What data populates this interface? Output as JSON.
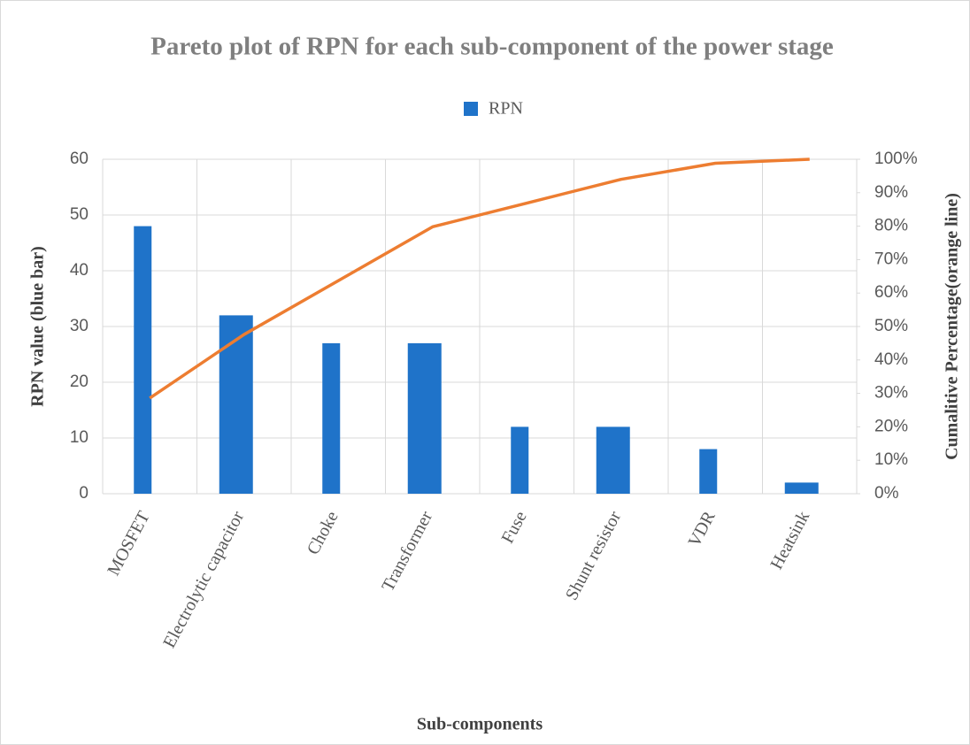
{
  "chart_data": {
    "type": "bar",
    "title": "Pareto plot of RPN for each sub-component of the power stage",
    "x_label": "Sub-components",
    "y_label": "RPN value (blue bar)",
    "y2_label": "Cumalitive Percentage(orange line)",
    "categories": [
      "MOSFET",
      "Electrolytic capacitor",
      "Choke",
      "Transformer",
      "Fuse",
      "Shunt resistor",
      "VDR",
      "Heatsink"
    ],
    "series": [
      {
        "name": "RPN",
        "color": "#1f73c9",
        "values": [
          48,
          32,
          27,
          27,
          12,
          12,
          8,
          2
        ]
      },
      {
        "type": "line",
        "color": "#ed7d31",
        "axis": "y2",
        "values": [
          28.6,
          47.6,
          63.7,
          79.8,
          86.9,
          94.0,
          98.8,
          100
        ]
      }
    ],
    "ylim": [
      0,
      60
    ],
    "yticks": [
      0,
      10,
      20,
      30,
      40,
      50,
      60
    ],
    "y2lim": [
      0,
      100
    ],
    "y2ticks": [
      {
        "value": 0,
        "label": "0%"
      },
      {
        "value": 10,
        "label": "10%"
      },
      {
        "value": 20,
        "label": "20%"
      },
      {
        "value": 30,
        "label": "30%"
      },
      {
        "value": 40,
        "label": "40%"
      },
      {
        "value": 50,
        "label": "50%"
      },
      {
        "value": 60,
        "label": "60%"
      },
      {
        "value": 70,
        "label": "70%"
      },
      {
        "value": 80,
        "label": "80%"
      },
      {
        "value": 90,
        "label": "90%"
      },
      {
        "value": 100,
        "label": "100%"
      }
    ],
    "grid": true,
    "legend": "top"
  }
}
